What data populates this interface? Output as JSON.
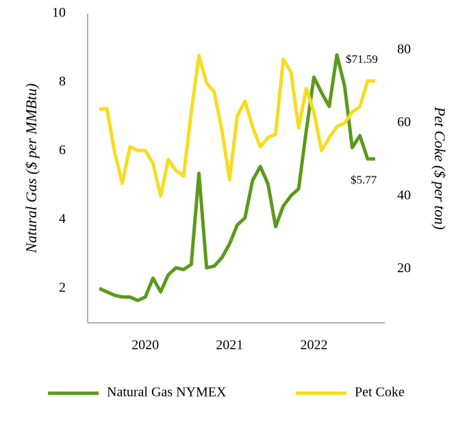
{
  "chart_data": {
    "type": "line",
    "categories": [
      null,
      null,
      null,
      null,
      null,
      null,
      "2020",
      null,
      null,
      null,
      null,
      null,
      null,
      null,
      null,
      null,
      null,
      "2021",
      null,
      null,
      null,
      null,
      null,
      null,
      null,
      null,
      null,
      null,
      "2022",
      null,
      null,
      null,
      null,
      null,
      null,
      null,
      null
    ],
    "series": [
      {
        "name": "Natural Gas NYMEX",
        "color": "#5b9a1b",
        "axis": "y",
        "values": [
          2.0,
          1.9,
          1.8,
          1.75,
          1.75,
          1.65,
          1.75,
          2.3,
          1.9,
          2.4,
          2.6,
          2.55,
          2.7,
          5.35,
          2.6,
          2.65,
          2.9,
          3.3,
          3.85,
          4.05,
          5.15,
          5.55,
          5.05,
          3.8,
          4.4,
          4.7,
          4.9,
          6.6,
          8.15,
          7.7,
          7.3,
          8.8,
          7.9,
          6.1,
          6.45,
          5.77,
          5.77
        ],
        "value_labels": [
          null,
          null,
          null,
          null,
          null,
          null,
          null,
          null,
          null,
          null,
          null,
          null,
          null,
          null,
          null,
          null,
          null,
          null,
          null,
          null,
          null,
          null,
          null,
          null,
          null,
          null,
          null,
          null,
          null,
          null,
          null,
          null,
          null,
          null,
          null,
          null,
          "$5.77"
        ]
      },
      {
        "name": "Pet Coke",
        "color": "#f7dc1f",
        "axis": "y2",
        "values": [
          63.8,
          64,
          52,
          43.5,
          53.5,
          52.5,
          52.5,
          49,
          40,
          50,
          47,
          45.5,
          63,
          78.5,
          71,
          68.5,
          58,
          44.5,
          62,
          66,
          59,
          53.5,
          56,
          57,
          77.5,
          74,
          58.7,
          69.5,
          63,
          52.5,
          56,
          59,
          60,
          63,
          64.5,
          71.59,
          71.59
        ],
        "value_labels": [
          null,
          null,
          null,
          null,
          null,
          null,
          null,
          null,
          null,
          null,
          null,
          null,
          null,
          null,
          null,
          null,
          null,
          null,
          null,
          null,
          null,
          null,
          null,
          null,
          null,
          null,
          null,
          null,
          null,
          null,
          null,
          null,
          null,
          null,
          null,
          null,
          "$71.59"
        ]
      }
    ],
    "ylabel": "Natural Gas  ($ per MMBtu)",
    "y2label": "Pet Coke ($ per ton)",
    "ylim": [
      1,
      10
    ],
    "yticks": [
      2,
      4,
      6,
      8,
      10
    ],
    "y2lim": [
      5.25,
      90
    ],
    "y2ticks": [
      20,
      40,
      60,
      80
    ],
    "grid": false,
    "legend": "bottom"
  }
}
